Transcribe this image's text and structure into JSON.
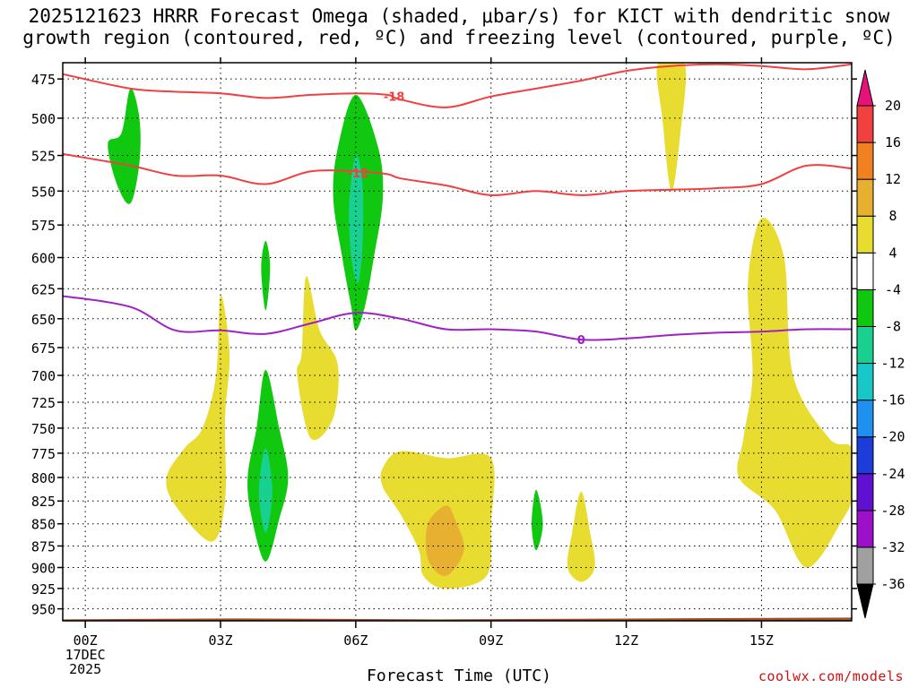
{
  "title": {
    "line1": "2025121623 HRRR Forecast Omega (shaded, μbar/s) for KICT with dendritic snow",
    "line2": "growth region (contoured, red, ºC) and freezing level (contoured, purple, ºC)"
  },
  "xlabel": "Forecast Time (UTC)",
  "credit": "coolwx.com/models",
  "chart_data": {
    "type": "heatmap",
    "title": "2025121623 HRRR Forecast Omega (shaded, μbar/s) for KICT with dendritic snow growth region (contoured, red, ºC) and freezing level (contoured, purple, ºC)",
    "xlabel": "Forecast Time (UTC)",
    "ylabel": "",
    "xlim": [
      -0.5,
      17.0
    ],
    "ylim": [
      465,
      965
    ],
    "y_scale": "log-pressure (inverted)",
    "grid": true,
    "x_ticks": [
      {
        "x": 0,
        "label": "00Z",
        "sub": [
          "17DEC",
          "2025"
        ]
      },
      {
        "x": 3,
        "label": "03Z"
      },
      {
        "x": 6,
        "label": "06Z"
      },
      {
        "x": 9,
        "label": "09Z"
      },
      {
        "x": 12,
        "label": "12Z"
      },
      {
        "x": 15,
        "label": "15Z"
      }
    ],
    "y_ticks": [
      475,
      500,
      525,
      550,
      575,
      600,
      625,
      650,
      675,
      700,
      725,
      750,
      775,
      800,
      825,
      850,
      875,
      900,
      925,
      950
    ],
    "colorbar": {
      "levels": [
        -36,
        -32,
        -28,
        -24,
        -20,
        -16,
        -12,
        -8,
        -4,
        4,
        8,
        12,
        16,
        20
      ],
      "colors": [
        "#000000",
        "#a0a0a0",
        "#9b10c8",
        "#6010d0",
        "#1d3ddb",
        "#1e90f0",
        "#18c8c8",
        "#18d090",
        "#10c810",
        "#ffffff",
        "#e8dc30",
        "#e8b030",
        "#f08020",
        "#f04040",
        "#e8107a"
      ]
    },
    "contours": [
      {
        "name": "-18",
        "color": "#f04040",
        "label": "-18",
        "points": [
          [
            -0.5,
            472
          ],
          [
            1,
            481
          ],
          [
            2,
            483
          ],
          [
            3,
            484
          ],
          [
            4,
            487
          ],
          [
            5,
            485
          ],
          [
            6,
            484
          ],
          [
            6.7,
            485
          ],
          [
            7,
            488
          ],
          [
            8,
            493
          ],
          [
            9,
            486
          ],
          [
            10,
            481
          ],
          [
            11,
            476
          ],
          [
            12,
            470
          ],
          [
            13,
            467
          ],
          [
            14,
            466
          ],
          [
            15,
            467
          ],
          [
            16,
            469
          ],
          [
            17,
            466
          ]
        ]
      },
      {
        "name": "-12",
        "color": "#f04040",
        "label": "-12",
        "points": [
          [
            -0.5,
            524
          ],
          [
            1,
            532
          ],
          [
            2,
            539
          ],
          [
            3,
            539
          ],
          [
            4,
            545
          ],
          [
            5,
            536
          ],
          [
            6,
            536
          ],
          [
            6.7,
            538
          ],
          [
            7,
            541
          ],
          [
            8,
            546
          ],
          [
            9,
            553
          ],
          [
            10,
            550
          ],
          [
            11,
            553
          ],
          [
            12,
            550
          ],
          [
            13,
            549
          ],
          [
            14,
            548
          ],
          [
            15,
            545
          ],
          [
            16,
            532
          ],
          [
            17,
            534
          ]
        ]
      },
      {
        "name": "0",
        "color": "#a020c8",
        "label": "0",
        "points": [
          [
            -0.5,
            631
          ],
          [
            1,
            640
          ],
          [
            2,
            660
          ],
          [
            3,
            660
          ],
          [
            4,
            663
          ],
          [
            5,
            654
          ],
          [
            6,
            645
          ],
          [
            7,
            650
          ],
          [
            8,
            659
          ],
          [
            9,
            659
          ],
          [
            10,
            661
          ],
          [
            11,
            668
          ],
          [
            12,
            667
          ],
          [
            13,
            664
          ],
          [
            14,
            662
          ],
          [
            15,
            661
          ],
          [
            16,
            659
          ],
          [
            17,
            659
          ]
        ]
      }
    ],
    "shaded_regions": [
      {
        "level": "-4 to -8",
        "color": "#10c810",
        "points": [
          [
            1,
            481
          ],
          [
            0.8,
            510
          ],
          [
            0.5,
            517
          ],
          [
            0.7,
            545
          ],
          [
            1.0,
            559
          ],
          [
            1.2,
            530
          ],
          [
            1.2,
            500
          ]
        ]
      },
      {
        "level": "-4 to -8",
        "color": "#10c810",
        "points": [
          [
            4,
            587
          ],
          [
            3.9,
            608
          ],
          [
            4.0,
            643
          ],
          [
            4.1,
            608
          ]
        ]
      },
      {
        "level": "-4 to -8",
        "color": "#10c810",
        "points": [
          [
            6,
            485
          ],
          [
            5.6,
            520
          ],
          [
            5.5,
            555
          ],
          [
            5.7,
            600
          ],
          [
            5.9,
            640
          ],
          [
            6,
            660
          ],
          [
            6.2,
            640
          ],
          [
            6.4,
            600
          ],
          [
            6.6,
            555
          ],
          [
            6.5,
            520
          ]
        ]
      },
      {
        "level": "-8 to -12",
        "color": "#18d090",
        "points": [
          [
            6,
            525
          ],
          [
            5.85,
            560
          ],
          [
            5.9,
            600
          ],
          [
            6.05,
            620
          ],
          [
            6.15,
            590
          ],
          [
            6.15,
            545
          ]
        ]
      },
      {
        "level": "-4 to -8",
        "color": "#10c810",
        "points": [
          [
            4,
            695
          ],
          [
            3.8,
            750
          ],
          [
            3.6,
            800
          ],
          [
            3.7,
            845
          ],
          [
            4.0,
            893
          ],
          [
            4.3,
            845
          ],
          [
            4.5,
            800
          ],
          [
            4.3,
            750
          ]
        ]
      },
      {
        "level": "-8 to -12",
        "color": "#18d090",
        "points": [
          [
            4,
            770
          ],
          [
            3.85,
            815
          ],
          [
            4.0,
            860
          ],
          [
            4.15,
            815
          ]
        ]
      },
      {
        "level": "-4 to -8",
        "color": "#10c810",
        "points": [
          [
            10,
            813
          ],
          [
            9.9,
            850
          ],
          [
            10,
            880
          ],
          [
            10.15,
            850
          ]
        ]
      },
      {
        "level": "4 to 8",
        "color": "#e8dc30",
        "points": [
          [
            3,
            630
          ],
          [
            2.9,
            700
          ],
          [
            2.6,
            750
          ],
          [
            2.2,
            770
          ],
          [
            1.8,
            800
          ],
          [
            2.0,
            830
          ],
          [
            2.8,
            870
          ],
          [
            3.1,
            825
          ],
          [
            3.1,
            740
          ],
          [
            3.2,
            680
          ]
        ]
      },
      {
        "level": "4 to 8",
        "color": "#e8dc30",
        "points": [
          [
            4.9,
            615
          ],
          [
            4.8,
            680
          ],
          [
            4.7,
            700
          ],
          [
            5.0,
            760
          ],
          [
            5.5,
            740
          ],
          [
            5.6,
            690
          ],
          [
            5.2,
            660
          ]
        ]
      },
      {
        "level": "4 to 8",
        "color": "#e8dc30",
        "points": [
          [
            6.6,
            790
          ],
          [
            7,
            773
          ],
          [
            8,
            780
          ],
          [
            9,
            780
          ],
          [
            9.0,
            850
          ],
          [
            8.9,
            910
          ],
          [
            8,
            925
          ],
          [
            7.5,
            910
          ],
          [
            7.4,
            880
          ],
          [
            7,
            840
          ],
          [
            6.6,
            810
          ]
        ]
      },
      {
        "level": "8 to 12",
        "color": "#e8b030",
        "points": [
          [
            8,
            830
          ],
          [
            7.6,
            850
          ],
          [
            7.6,
            890
          ],
          [
            8,
            910
          ],
          [
            8.4,
            880
          ],
          [
            8.2,
            845
          ]
        ]
      },
      {
        "level": "4 to 8",
        "color": "#e8dc30",
        "points": [
          [
            11,
            815
          ],
          [
            10.8,
            860
          ],
          [
            10.7,
            900
          ],
          [
            11,
            917
          ],
          [
            11.3,
            900
          ],
          [
            11.2,
            860
          ]
        ]
      },
      {
        "level": "4 to 8",
        "color": "#e8dc30",
        "points": [
          [
            12.7,
            466
          ],
          [
            12.8,
            500
          ],
          [
            13.0,
            550
          ],
          [
            13.2,
            510
          ],
          [
            13.3,
            466
          ]
        ]
      },
      {
        "level": "4 to 8",
        "color": "#e8dc30",
        "points": [
          [
            15,
            570
          ],
          [
            14.7,
            620
          ],
          [
            14.8,
            700
          ],
          [
            14.6,
            760
          ],
          [
            14.5,
            800
          ],
          [
            15.3,
            835
          ],
          [
            16,
            900
          ],
          [
            16.8,
            845
          ],
          [
            17,
            820
          ],
          [
            17,
            770
          ],
          [
            16.5,
            760
          ],
          [
            15.7,
            700
          ],
          [
            15.5,
            600
          ]
        ]
      }
    ],
    "terrain": {
      "color": "#a0522d",
      "pressure": 962
    }
  }
}
